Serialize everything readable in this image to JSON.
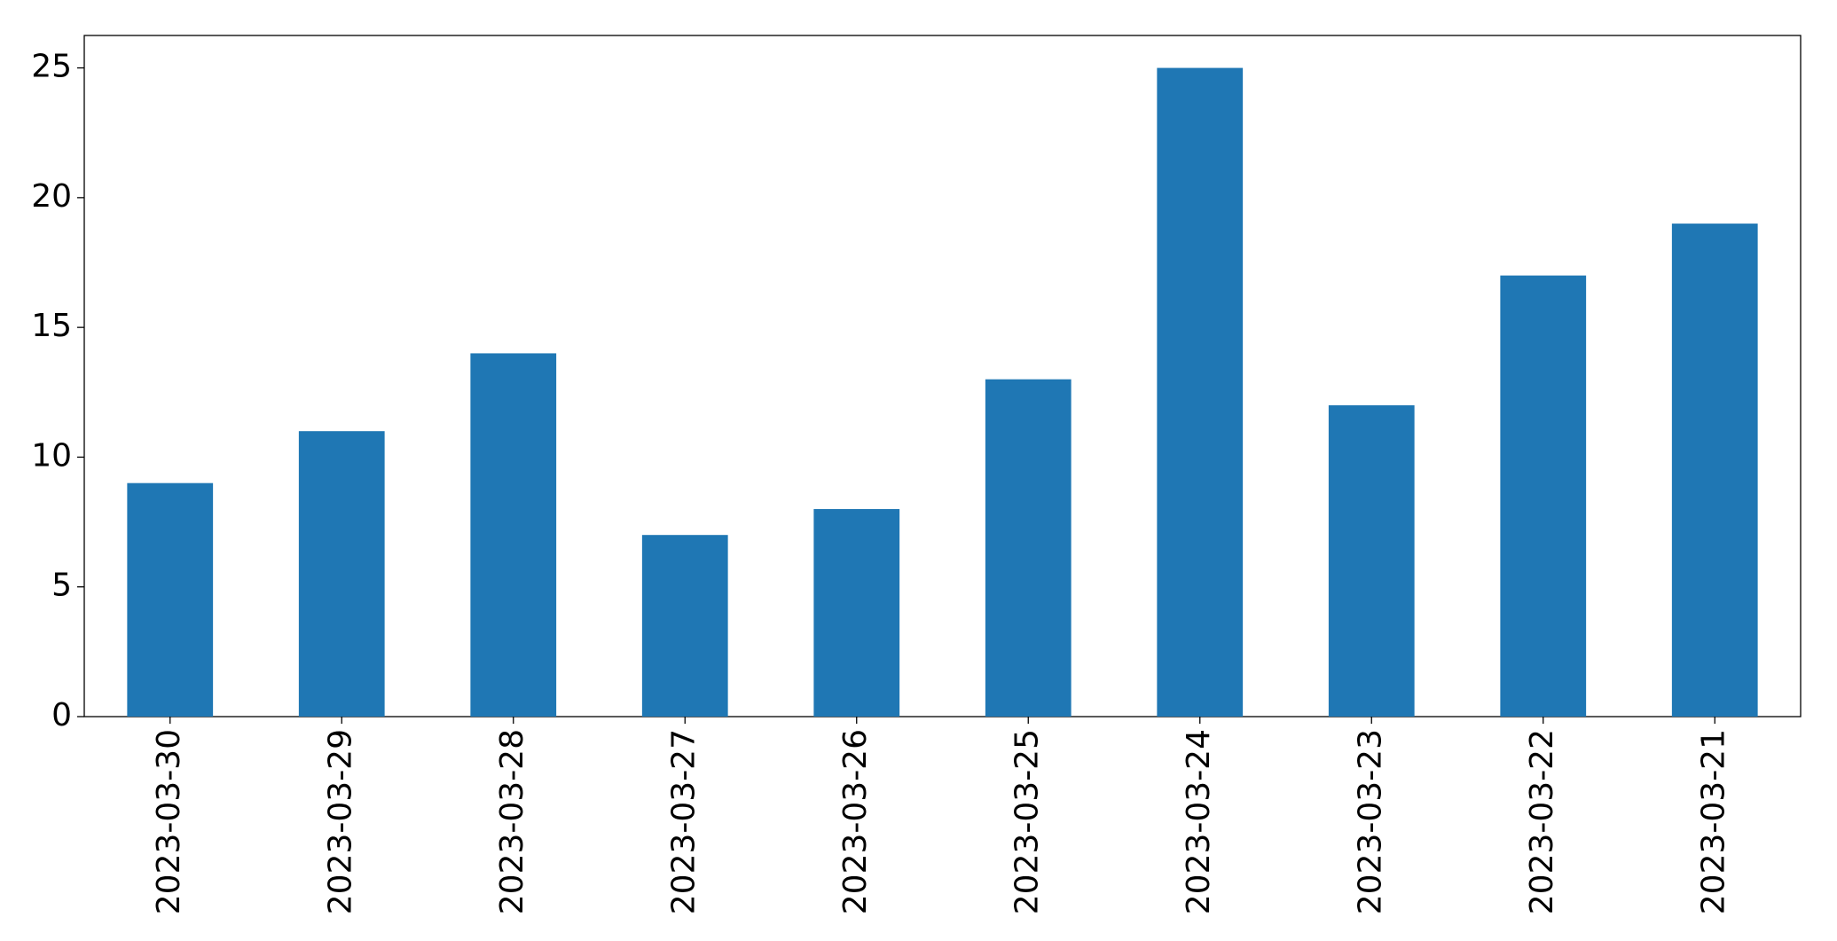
{
  "chart_data": {
    "type": "bar",
    "categories": [
      "2023-03-30",
      "2023-03-29",
      "2023-03-28",
      "2023-03-27",
      "2023-03-26",
      "2023-03-25",
      "2023-03-24",
      "2023-03-23",
      "2023-03-22",
      "2023-03-21"
    ],
    "values": [
      9,
      11,
      14,
      7,
      8,
      13,
      25,
      12,
      17,
      19
    ],
    "color": "#1f77b4",
    "ylim": [
      0,
      26.25
    ],
    "yticks": [
      0,
      5,
      10,
      15,
      20,
      25
    ],
    "grid": false
  }
}
